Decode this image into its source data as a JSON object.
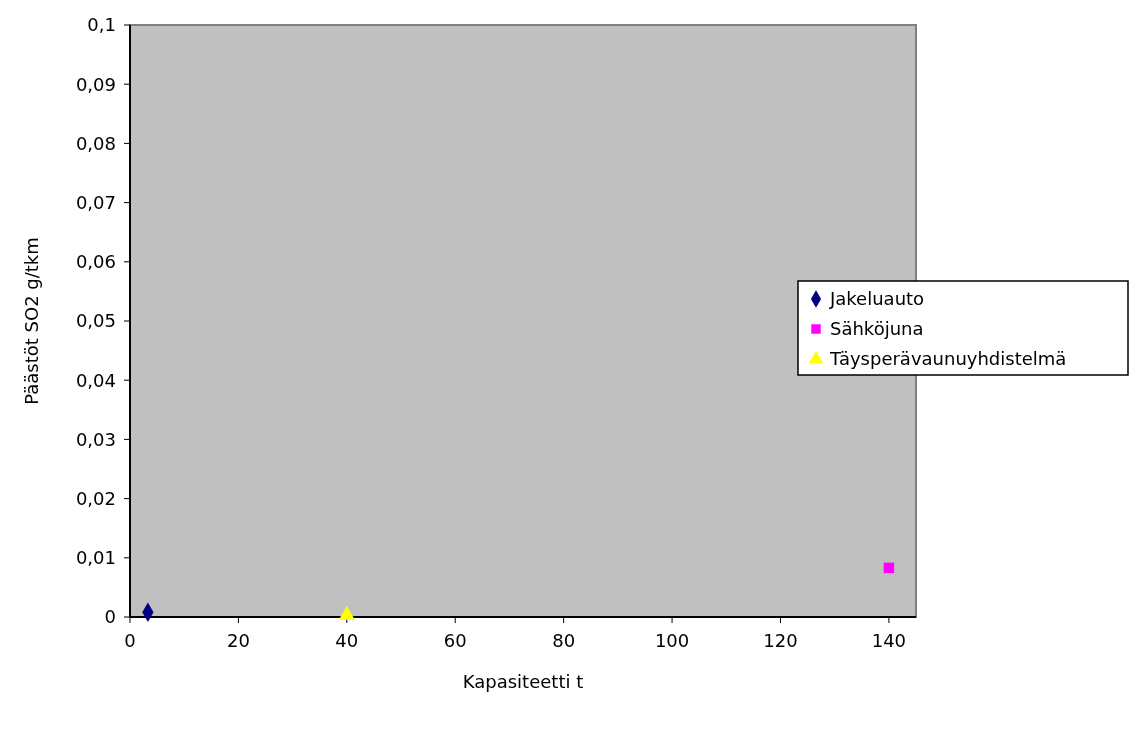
{
  "chart_data": {
    "type": "scatter",
    "xlabel": "Kapasiteetti t",
    "ylabel": "Päästöt SO2 g/tkm",
    "xlim": [
      0,
      145
    ],
    "xticks": [
      0,
      20,
      40,
      60,
      80,
      100,
      120,
      140
    ],
    "ylim": [
      0,
      0.1
    ],
    "yticks": [
      {
        "value": 0,
        "label": "0"
      },
      {
        "value": 0.01,
        "label": "0,01"
      },
      {
        "value": 0.02,
        "label": "0,02"
      },
      {
        "value": 0.03,
        "label": "0,03"
      },
      {
        "value": 0.04,
        "label": "0,04"
      },
      {
        "value": 0.05,
        "label": "0,05"
      },
      {
        "value": 0.06,
        "label": "0,06"
      },
      {
        "value": 0.07,
        "label": "0,07"
      },
      {
        "value": 0.08,
        "label": "0,08"
      },
      {
        "value": 0.09,
        "label": "0,09"
      },
      {
        "value": 0.1,
        "label": "0,1"
      }
    ],
    "grid": false,
    "legend": "right",
    "series": [
      {
        "name": "Jakeluauto",
        "color": "#000080",
        "marker": "diamond",
        "x": [
          3.3
        ],
        "values": [
          0.0008
        ]
      },
      {
        "name": "Sähköjuna",
        "color": "#ff00ff",
        "marker": "square",
        "x": [
          140
        ],
        "values": [
          0.0083
        ]
      },
      {
        "name": "Täysperävaunuyhdistelmä",
        "color": "#ffff00",
        "marker": "triangle",
        "x": [
          40
        ],
        "values": [
          0.0003
        ]
      }
    ]
  }
}
